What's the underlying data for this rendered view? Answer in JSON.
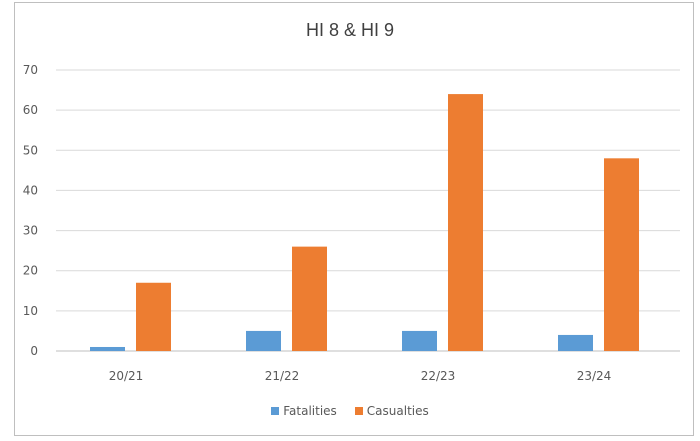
{
  "chart_data": {
    "type": "bar",
    "title": "HI 8 & HI 9",
    "xlabel": "",
    "ylabel": "",
    "categories": [
      "20/21",
      "21/22",
      "22/23",
      "23/24"
    ],
    "series": [
      {
        "name": "Fatalities",
        "values": [
          1,
          5,
          5,
          4
        ],
        "color": "#5b9bd5"
      },
      {
        "name": "Casualties",
        "values": [
          17,
          26,
          64,
          48
        ],
        "color": "#ed7d31"
      }
    ],
    "ylim": [
      0,
      70
    ],
    "yticks": [
      0,
      10,
      20,
      30,
      40,
      50,
      60,
      70
    ],
    "grid": true,
    "legend_position": "bottom"
  }
}
